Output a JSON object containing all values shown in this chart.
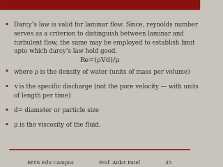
{
  "bg_color": "#c8c4bc",
  "top_bar_color": "#8b1010",
  "top_bar_height": 0.055,
  "line_color": "#8b1010",
  "text_color": "#2a2a2a",
  "bullet_color": "#8b1010",
  "bullet_items": [
    "Darcy’s law is valid for laminar flow. Since, reynolds number\nserves as a criterion to distinguish between laminar and\nturbulent flow, the same may be employed to establish limit\nupto which darcy’s law hold good.",
    "where ρ is the density of water (units of mass per volume)",
    "v is the specific discharge (not the pore velocity — with units\nof length per time)",
    "d= diameter or particle size",
    "μ is the viscosity of the fluid."
  ],
  "formula": "Re=(ρVd)/μ",
  "footer_text": "BITS Edu Campus                Prof. Ankit Patel                35",
  "font_size": 6.2,
  "formula_font_size": 7.0,
  "footer_font_size": 5.2
}
